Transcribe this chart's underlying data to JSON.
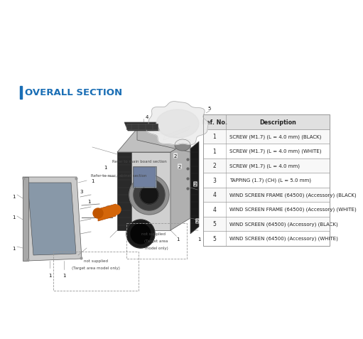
{
  "title": "OVERALL SECTION",
  "title_color": "#1a6eb5",
  "background_color": "#ffffff",
  "table_header": [
    "Ref. No.",
    "Description"
  ],
  "table_rows": [
    [
      "1",
      "SCREW (M1.7) (L = 4.0 mm) (BLACK)"
    ],
    [
      "1",
      "SCREW (M1.7) (L = 4.0 mm) (WHITE)"
    ],
    [
      "2",
      "SCREW (M1.7) (L = 4.0 mm)"
    ],
    [
      "3",
      "TAPPING (1.7) (CH) (L = 5.0 mm)"
    ],
    [
      "4",
      "WIND SCREEN FRAME (64500) (Accessory) (BLACK)"
    ],
    [
      "4",
      "WIND SCREEN FRAME (64500) (Accessory) (WHITE)"
    ],
    [
      "5",
      "WIND SCREEN (64500) (Accessory) (BLACK)"
    ],
    [
      "5",
      "WIND SCREEN (64500) (Accessory) (WHITE)"
    ]
  ],
  "border_color": "#999999",
  "text_color": "#222222",
  "annotation_color": "#444444",
  "diagram_color_body": "#c8c8c8",
  "diagram_color_dark": "#3a3a3a",
  "diagram_color_grip": "#2a2a2a",
  "diagram_color_orange": "#d4660a"
}
